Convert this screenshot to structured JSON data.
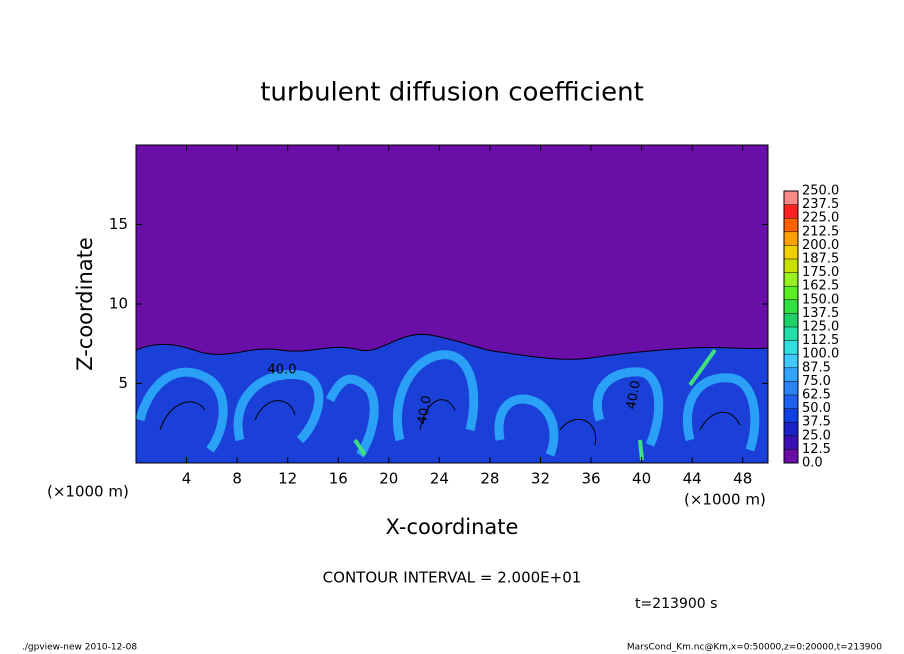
{
  "chart_data": {
    "type": "contour",
    "title": "turbulent diffusion coefficient",
    "x_label": "X-coordinate",
    "y_label": "Z-coordinate",
    "x_unit": "(×1000 m)",
    "y_unit": "(×1000 m)",
    "xlim": [
      0,
      50
    ],
    "xticks": [
      4,
      8,
      12,
      16,
      20,
      24,
      28,
      32,
      36,
      40,
      44,
      48
    ],
    "ylim": [
      0,
      20
    ],
    "yticks": [
      5,
      10,
      15
    ],
    "contour_labels": [
      "40.0",
      "40.0",
      "40.0"
    ],
    "contour_interval": "CONTOUR INTERVAL = 2.000E+01",
    "time": "t=213900 s",
    "colorbar": {
      "lim": [
        0,
        250
      ],
      "ticks": [
        {
          "value": 0,
          "label": "0.0"
        },
        12.5,
        {
          "value": 25,
          "label": "25.0"
        },
        37.5,
        {
          "value": 50,
          "label": "50.0"
        },
        62.5,
        {
          "value": 75,
          "label": "75.0"
        },
        87.5,
        {
          "value": 100,
          "label": "100.0"
        },
        112.5,
        {
          "value": 125,
          "label": "125.0"
        },
        137.5,
        {
          "value": 150,
          "label": "150.0"
        },
        162.5,
        {
          "value": 175,
          "label": "175.0"
        },
        187.5,
        {
          "value": 200,
          "label": "200.0"
        },
        212.5,
        {
          "value": 225,
          "label": "225.0"
        },
        237.5,
        {
          "value": 250,
          "label": "250.0"
        }
      ],
      "colors": [
        "#6a0ea8",
        "#3a10b4",
        "#1a22c8",
        "#1040e0",
        "#2060f0",
        "#2a84f8",
        "#30a4ff",
        "#40c8ff",
        "#30e0e0",
        "#20e0a8",
        "#20d068",
        "#30e040",
        "#58f020",
        "#98f020",
        "#c8e000",
        "#f0d000",
        "#ffa000",
        "#ff6000",
        "#ff2020",
        "#ff8888"
      ]
    },
    "footer_left": "./gpview-new  2010-12-08",
    "footer_right": "MarsCond_Km.nc@Km,x=0:50000,z=0:20000,t=213900"
  }
}
